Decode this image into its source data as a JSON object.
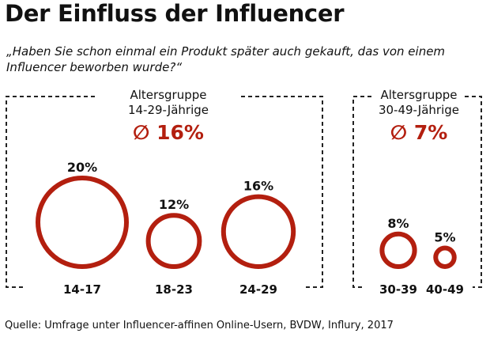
{
  "title": "Der Einfluss der Influencer",
  "question": "„Haben Sie schon einmal ein Produkt später auch gekauft, das von einem Influencer beworben wurde?“",
  "source": "Quelle: Umfrage unter Influencer-affinen Online-Usern, BVDW, Influry, 2017",
  "colors": {
    "accent": "#b31f0f",
    "frame": "#222222"
  },
  "groups": [
    {
      "label_line1": "Altersgruppe",
      "label_line2": "14-29-Jährige",
      "average": "∅ 16%"
    },
    {
      "label_line1": "Altersgruppe",
      "label_line2": "30-49-Jährige",
      "average": "∅ 7%"
    }
  ],
  "chart_data": {
    "type": "bubble",
    "categories": [
      "14-17",
      "18-23",
      "24-29",
      "30-39",
      "40-49"
    ],
    "values": [
      20,
      12,
      16,
      8,
      5
    ],
    "value_labels": [
      "20%",
      "12%",
      "16%",
      "8%",
      "5%"
    ],
    "group_of_category": [
      0,
      0,
      0,
      1,
      1
    ],
    "unit": "%"
  }
}
